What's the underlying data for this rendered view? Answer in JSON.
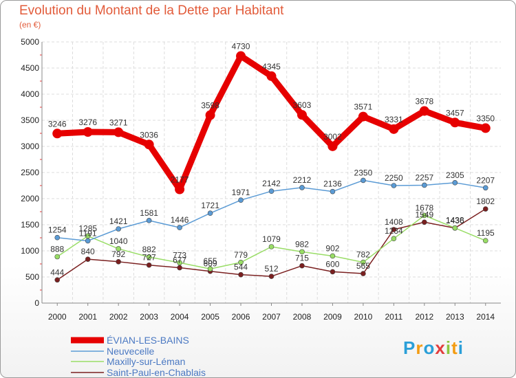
{
  "header": {
    "title": "Evolution du Montant de la Dette par Habitant",
    "subtitle": "(en €)"
  },
  "logo": {
    "text": "Proxiti",
    "letters": [
      "P",
      "r",
      "o",
      "x",
      "i",
      "t",
      "i"
    ],
    "colors": [
      "#2a9fd8",
      "#f39c12",
      "#2a9fd8",
      "#e23d3d",
      "#8cc63f",
      "#f39c12",
      "#2a9fd8"
    ]
  },
  "chart_data": {
    "type": "line",
    "x": [
      "2000",
      "2001",
      "2002",
      "2003",
      "2004",
      "2005",
      "2006",
      "2007",
      "2008",
      "2009",
      "2010",
      "2011",
      "2012",
      "2013",
      "2014"
    ],
    "yticks": [
      0,
      500,
      1000,
      1500,
      2000,
      2500,
      3000,
      3500,
      4000,
      4500,
      5000
    ],
    "ylim": [
      0,
      5000
    ],
    "grid": true,
    "legend": "bottom-left",
    "series": [
      {
        "name": "ÉVIAN-LES-BAINS",
        "color": "#e60000",
        "values": [
          3246,
          3276,
          3271,
          3036,
          2177,
          3598,
          4730,
          4345,
          3603,
          3002,
          3571,
          3331,
          3678,
          3457,
          3350
        ]
      },
      {
        "name": "Neuvecelle",
        "color": "#5b9bd5",
        "values": [
          1254,
          1191,
          1421,
          1581,
          1446,
          1721,
          1971,
          2142,
          2212,
          2136,
          2350,
          2250,
          2257,
          2305,
          2207
        ]
      },
      {
        "name": "Maxilly-sur-Léman",
        "color": "#99dd66",
        "values": [
          888,
          1285,
          1040,
          882,
          773,
          655,
          779,
          1079,
          982,
          902,
          782,
          1234,
          1678,
          1438,
          1195
        ]
      },
      {
        "name": "Saint-Paul-en-Chablais",
        "color": "#7a1f1f",
        "values": [
          444,
          840,
          792,
          727,
          677,
          609,
          544,
          512,
          715,
          600,
          565,
          1408,
          1549,
          1436,
          1802
        ]
      }
    ]
  }
}
